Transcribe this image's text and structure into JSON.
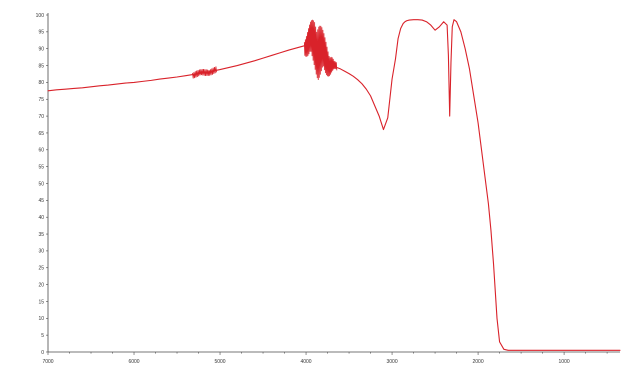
{
  "colors": {
    "series": "#d9222a",
    "axis": "#4a4a4a",
    "background": "#ffffff"
  },
  "chart_data": {
    "type": "line",
    "title": "",
    "legend_text": "",
    "xlabel": "",
    "ylabel": "",
    "x_reversed": true,
    "xlim": [
      7000,
      350
    ],
    "ylim": [
      0,
      100
    ],
    "x_ticks": [
      7000,
      6000,
      5000,
      4000,
      3000,
      2000,
      1000
    ],
    "x_tick_labels": [
      "7000",
      "6000",
      "5000",
      "4000",
      "3000",
      "2000",
      "1000"
    ],
    "y_ticks": [
      0,
      5,
      10,
      15,
      20,
      25,
      30,
      35,
      40,
      45,
      50,
      55,
      60,
      65,
      70,
      75,
      80,
      85,
      90,
      95,
      100
    ],
    "y_tick_labels": [
      "0",
      "5",
      "10",
      "15",
      "20",
      "25",
      "30",
      "35",
      "40",
      "45",
      "50",
      "55",
      "60",
      "65",
      "70",
      "75",
      "80",
      "85",
      "90",
      "95",
      "100"
    ],
    "grid": false,
    "series": [
      {
        "x": [
          7000,
          6900,
          6800,
          6700,
          6600,
          6500,
          6400,
          6300,
          6200,
          6100,
          6000,
          5900,
          5800,
          5700,
          5600,
          5500,
          5400,
          5300,
          5200,
          5100,
          5000,
          4900,
          4800,
          4700,
          4600,
          4500,
          4400,
          4300,
          4200,
          4100,
          4000,
          3950,
          3900,
          3870,
          3840,
          3800,
          3760,
          3720,
          3700,
          3650,
          3600,
          3550,
          3500,
          3450,
          3400,
          3350,
          3300,
          3250,
          3200,
          3150,
          3100,
          3050,
          3000,
          2960,
          2930,
          2900,
          2870,
          2850,
          2830,
          2800,
          2750,
          2700,
          2650,
          2600,
          2550,
          2500,
          2450,
          2400,
          2360,
          2345,
          2330,
          2315,
          2300,
          2280,
          2250,
          2200,
          2150,
          2100,
          2050,
          2000,
          1960,
          1920,
          1880,
          1850,
          1820,
          1800,
          1780,
          1750,
          1700,
          1650,
          1600,
          1550,
          1500,
          1450,
          1400,
          1350,
          1300,
          1250,
          1200,
          1150,
          1100,
          1050,
          1000,
          950,
          900,
          850,
          800,
          750,
          700,
          650,
          600,
          550,
          500,
          450,
          400,
          350
        ],
        "y": [
          77.5,
          77.8,
          78.0,
          78.2,
          78.4,
          78.7,
          79.0,
          79.2,
          79.5,
          79.8,
          80.0,
          80.3,
          80.6,
          81.0,
          81.3,
          81.6,
          82.0,
          82.4,
          82.8,
          83.3,
          83.8,
          84.4,
          85.0,
          85.7,
          86.4,
          87.2,
          88.0,
          88.8,
          89.6,
          90.3,
          91.0,
          92.0,
          92.0,
          90.8,
          89.5,
          88.0,
          86.8,
          85.6,
          85.5,
          84.5,
          84.0,
          83.3,
          82.6,
          81.8,
          80.8,
          79.6,
          78.0,
          76.0,
          73.0,
          70.0,
          66.0,
          69.5,
          81.0,
          87.0,
          93.0,
          96.0,
          97.5,
          98.0,
          98.3,
          98.5,
          98.6,
          98.6,
          98.5,
          98.0,
          97.0,
          95.5,
          96.5,
          98.0,
          97.0,
          88.0,
          70.0,
          86.0,
          96.5,
          98.6,
          98.0,
          95.0,
          90.0,
          84.0,
          76.0,
          68.0,
          60.0,
          52.0,
          44.0,
          36.0,
          26.0,
          18.0,
          10.0,
          3.0,
          0.8,
          0.5,
          0.5,
          0.5,
          0.5,
          0.5,
          0.5,
          0.5,
          0.5,
          0.5,
          0.5,
          0.5,
          0.5,
          0.5,
          0.5,
          0.5,
          0.5,
          0.5,
          0.5,
          0.5,
          0.5,
          0.5,
          0.5,
          0.5,
          0.5,
          0.5,
          0.5,
          0.5
        ]
      }
    ]
  }
}
